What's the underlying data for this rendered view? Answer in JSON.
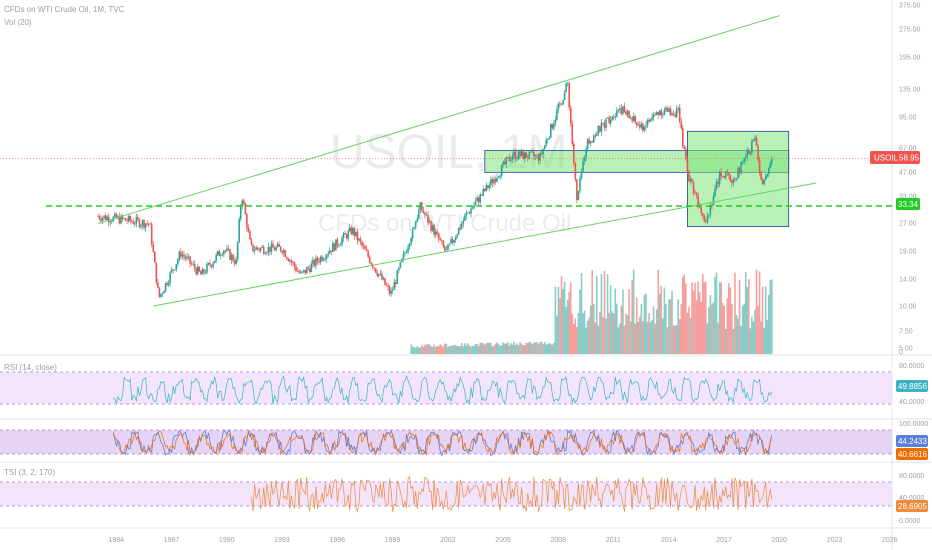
{
  "header": {
    "main_title": "CFDs on WTI Crude Oil, 1M, TVC",
    "volume_title": "Vol (20)"
  },
  "watermark": {
    "symbol": "USOIL, 1M",
    "name": "CFDs on WTI Crude Oil"
  },
  "colors": {
    "up": "#26a69a",
    "down": "#ef5350",
    "channel": "#66d35e",
    "support": "#22cc22",
    "zone_fill": "#7ee37a",
    "zone_border": "#1e3fa8",
    "price_line": "#ef5350",
    "rsi_line": "#3bb3c3",
    "stoch_k": "#5b7fd9",
    "stoch_d": "#ef6c00",
    "tsi_line": "#ef8a3c",
    "band_fill": "#f1e4fb",
    "band_line": "#b69ad6"
  },
  "price_axis": {
    "ticks": [
      "375.00",
      "275.00",
      "195.00",
      "135.00",
      "95.00",
      "67.00",
      "47.00",
      "33.00",
      "27.00",
      "19.00",
      "14.00",
      "10.00",
      "7.50",
      "5.00",
      "0"
    ]
  },
  "price_tags": {
    "last": {
      "label": "USOIL",
      "value": "58.95"
    },
    "support": {
      "value": "33.34"
    }
  },
  "rsi_panel": {
    "title": "RSI (14, close)",
    "ticks": [
      "80.0000",
      "40.0000"
    ],
    "value": "49.8856"
  },
  "stoch_panel": {
    "ticks": [
      "100.0000"
    ],
    "k_value": "44.2433",
    "d_value": "40.6616"
  },
  "tsi_panel": {
    "title": "TSI (3, 2, 170)",
    "ticks": [
      "80.0000",
      "40.0000",
      "0.0000"
    ],
    "value": "28.6905"
  },
  "time_axis": {
    "ticks": [
      "1984",
      "1987",
      "1990",
      "1993",
      "1996",
      "1999",
      "2002",
      "2005",
      "2008",
      "2011",
      "2014",
      "2017",
      "2020",
      "2023",
      "2026"
    ]
  },
  "chart_data": {
    "type": "candlestick",
    "title": "CFDs on WTI Crude Oil, 1M, TVC",
    "symbol": "USOIL",
    "interval": "1M",
    "y_scale": "log",
    "last_price": 58.95,
    "support_level": 33.34,
    "price_path": [
      {
        "year": 1983.0,
        "price": 29.5
      },
      {
        "year": 1985.8,
        "price": 27.0
      },
      {
        "year": 1986.3,
        "price": 11.0
      },
      {
        "year": 1987.5,
        "price": 19.0
      },
      {
        "year": 1988.6,
        "price": 14.5
      },
      {
        "year": 1989.8,
        "price": 20.0
      },
      {
        "year": 1990.5,
        "price": 17.0
      },
      {
        "year": 1990.8,
        "price": 39.0
      },
      {
        "year": 1991.3,
        "price": 20.0
      },
      {
        "year": 1993.0,
        "price": 20.0
      },
      {
        "year": 1994.0,
        "price": 14.5
      },
      {
        "year": 1996.8,
        "price": 25.0
      },
      {
        "year": 1998.9,
        "price": 11.5
      },
      {
        "year": 2000.5,
        "price": 33.0
      },
      {
        "year": 2001.9,
        "price": 19.0
      },
      {
        "year": 2003.0,
        "price": 30.0
      },
      {
        "year": 2005.5,
        "price": 62.0
      },
      {
        "year": 2007.0,
        "price": 60.0
      },
      {
        "year": 2008.5,
        "price": 145.0
      },
      {
        "year": 2009.0,
        "price": 35.0
      },
      {
        "year": 2009.5,
        "price": 70.0
      },
      {
        "year": 2011.3,
        "price": 110.0
      },
      {
        "year": 2012.5,
        "price": 85.0
      },
      {
        "year": 2013.5,
        "price": 105.0
      },
      {
        "year": 2014.5,
        "price": 103.0
      },
      {
        "year": 2015.0,
        "price": 50.0
      },
      {
        "year": 2016.0,
        "price": 28.0
      },
      {
        "year": 2016.8,
        "price": 50.0
      },
      {
        "year": 2017.5,
        "price": 45.0
      },
      {
        "year": 2018.7,
        "price": 76.0
      },
      {
        "year": 2019.0,
        "price": 44.0
      },
      {
        "year": 2019.6,
        "price": 58.95
      }
    ],
    "volume_start_year": 2000.0,
    "channel_upper": [
      {
        "year": 1983.0,
        "price": 27.0
      },
      {
        "year": 2020.0,
        "price": 330.0
      }
    ],
    "channel_lower": [
      {
        "year": 1986.0,
        "price": 10.0
      },
      {
        "year": 2022.0,
        "price": 44.0
      }
    ],
    "zones": [
      {
        "x_from": 2004.0,
        "x_to": 2020.5,
        "price_high": 65.0,
        "price_low": 50.0
      },
      {
        "x_from": 2015.0,
        "x_to": 2020.5,
        "price_high": 82.0,
        "price_low": 26.0
      }
    ],
    "indicators": {
      "rsi": {
        "period": 14,
        "last": 49.8856,
        "bands": [
          70,
          30
        ]
      },
      "stoch": {
        "k_last": 44.2433,
        "d_last": 40.6616,
        "bands": [
          80,
          20
        ]
      },
      "tsi": {
        "params": [
          3,
          2,
          170
        ],
        "last": 28.6905,
        "bands": [
          80,
          40
        ]
      }
    }
  }
}
